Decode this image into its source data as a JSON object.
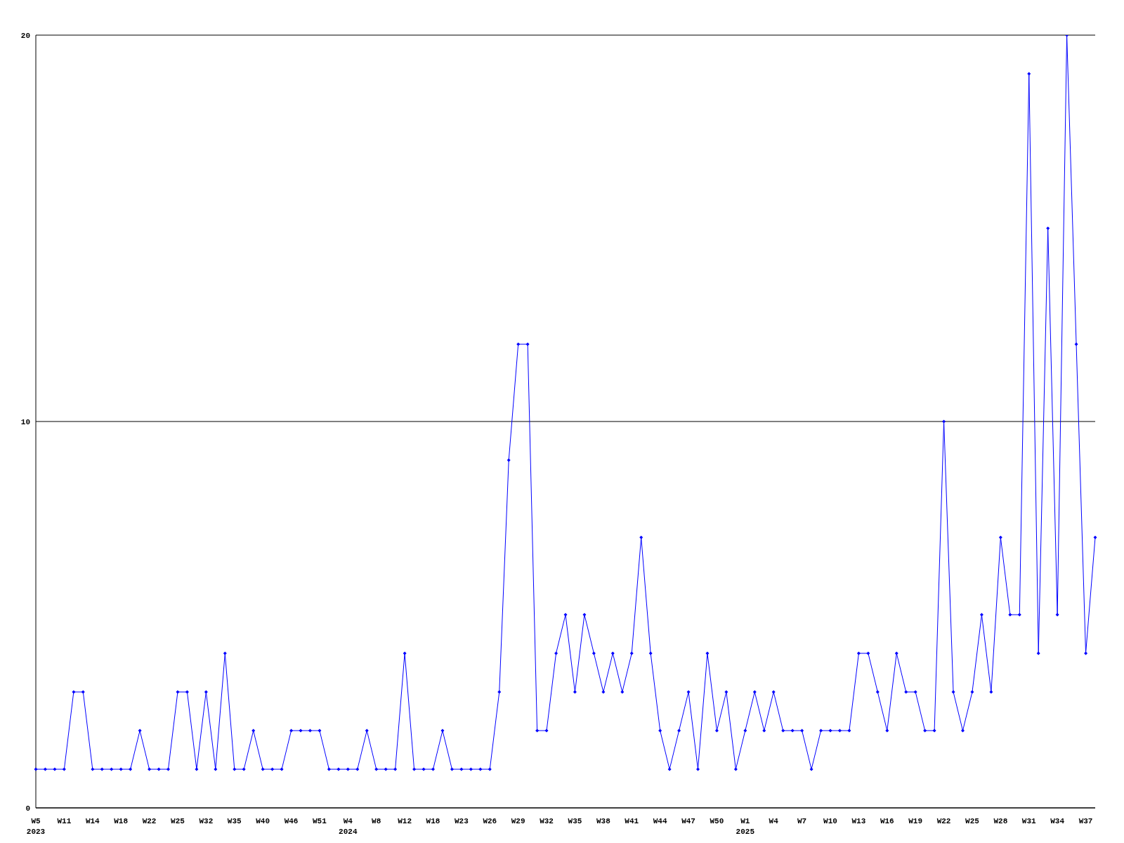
{
  "chart_data": {
    "type": "line",
    "categories": [
      "W5\n2023",
      null,
      null,
      "W11",
      null,
      null,
      "W14",
      null,
      null,
      "W18",
      null,
      null,
      "W22",
      null,
      null,
      "W25",
      null,
      null,
      "W32",
      null,
      null,
      "W35",
      null,
      null,
      "W40",
      null,
      null,
      "W46",
      null,
      null,
      "W51",
      null,
      null,
      "W4\n2024",
      null,
      null,
      "W8",
      null,
      null,
      "W12",
      null,
      null,
      "W18",
      null,
      null,
      "W23",
      null,
      null,
      "W26",
      null,
      null,
      "W29",
      null,
      null,
      "W32",
      null,
      null,
      "W35",
      null,
      null,
      "W38",
      null,
      null,
      "W41",
      null,
      null,
      "W44",
      null,
      null,
      "W47",
      null,
      null,
      "W50",
      null,
      null,
      "W1\n2025",
      null,
      null,
      "W4",
      null,
      null,
      "W7",
      null,
      null,
      "W10",
      null,
      null,
      "W13",
      null,
      null,
      "W16",
      null,
      null,
      "W19",
      null,
      null,
      "W22",
      null,
      null,
      "W25",
      null,
      null,
      "W28",
      null,
      null,
      "W31",
      null,
      null,
      "W34",
      null,
      null,
      "W37",
      null
    ],
    "series": [
      {
        "color": "#0000ff",
        "values": [
          1,
          1,
          1,
          1,
          3,
          3,
          1,
          1,
          1,
          1,
          1,
          2,
          1,
          1,
          1,
          3,
          3,
          1,
          3,
          1,
          4,
          1,
          1,
          2,
          1,
          1,
          1,
          2,
          2,
          2,
          2,
          1,
          1,
          1,
          1,
          2,
          1,
          1,
          1,
          4,
          1,
          1,
          1,
          2,
          1,
          1,
          1,
          1,
          1,
          3,
          9,
          12,
          12,
          2,
          2,
          4,
          5,
          3,
          5,
          4,
          3,
          4,
          3,
          4,
          7,
          4,
          2,
          1,
          2,
          3,
          1,
          4,
          2,
          3,
          1,
          2,
          3,
          2,
          3,
          2,
          2,
          2,
          1,
          2,
          2,
          2,
          2,
          4,
          4,
          3,
          2,
          4,
          3,
          3,
          2,
          2,
          10,
          3,
          2,
          3,
          5,
          3,
          7,
          5,
          5,
          19,
          4,
          15,
          5,
          20,
          12,
          4,
          7
        ]
      }
    ],
    "ylim": [
      0,
      20
    ],
    "yticks": [
      0,
      10,
      20
    ],
    "grid": "y",
    "marker": "diamond",
    "line_style": "solid"
  }
}
